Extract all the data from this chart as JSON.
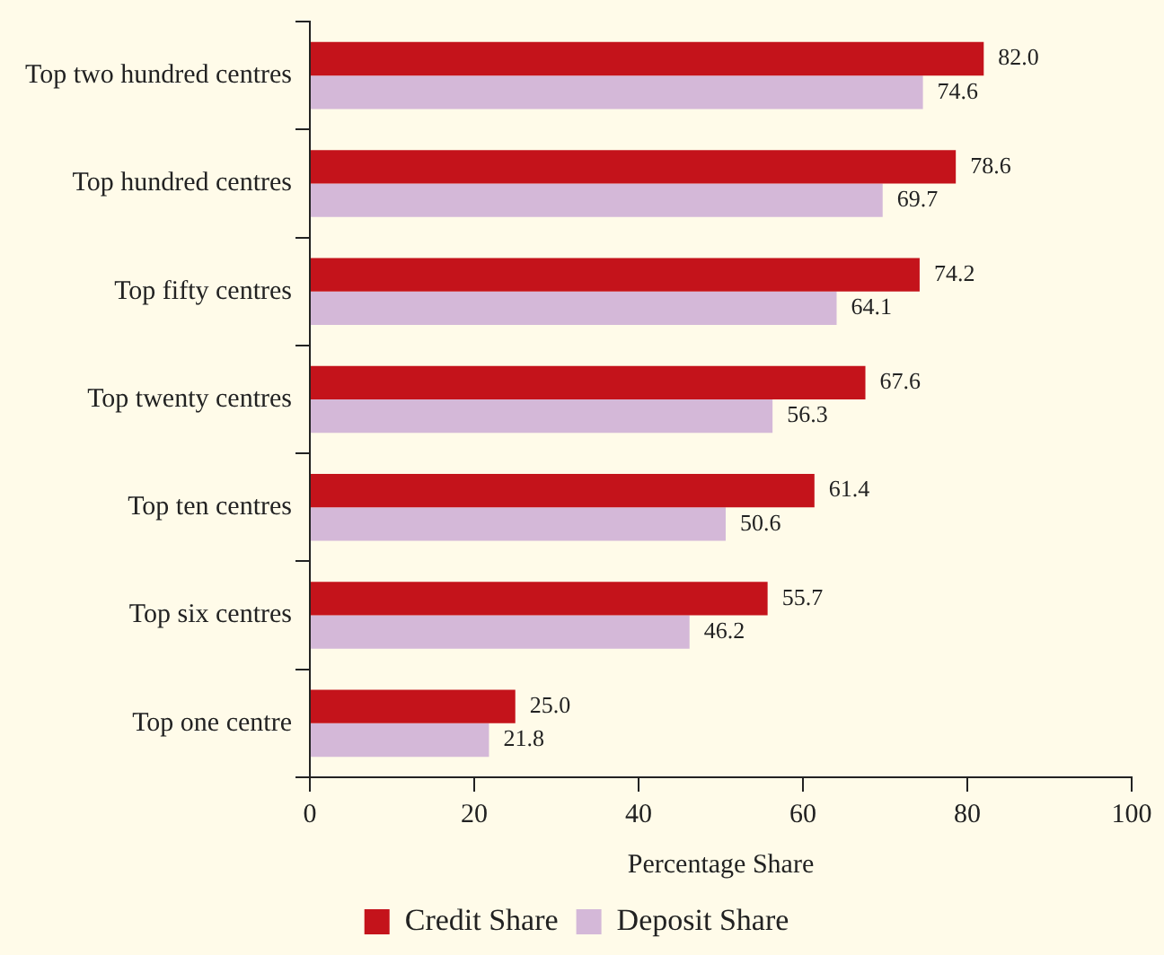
{
  "chart_data": {
    "type": "bar",
    "orientation": "horizontal",
    "xlabel": "Percentage Share",
    "categories": [
      "Top two hundred centres",
      "Top hundred centres",
      "Top fifty centres",
      "Top twenty centres",
      "Top ten centres",
      "Top six centres",
      "Top one centre"
    ],
    "series": [
      {
        "name": "Credit Share",
        "color": "#c4131b",
        "values": [
          82.0,
          78.6,
          74.2,
          67.6,
          61.4,
          55.7,
          25.0
        ],
        "value_labels": [
          "82.0",
          "78.6",
          "74.2",
          "67.6",
          "61.4",
          "55.7",
          "25.0"
        ]
      },
      {
        "name": "Deposit Share",
        "color": "#d4b8d8",
        "values": [
          74.6,
          69.7,
          64.1,
          56.3,
          50.6,
          46.2,
          21.8
        ],
        "value_labels": [
          "74.6",
          "69.7",
          "64.1",
          "56.3",
          "50.6",
          "46.2",
          "21.8"
        ]
      }
    ],
    "xlim": [
      0,
      100
    ],
    "xticks": [
      0,
      20,
      40,
      60,
      80,
      100
    ],
    "grid": false,
    "legend": "bottom"
  }
}
